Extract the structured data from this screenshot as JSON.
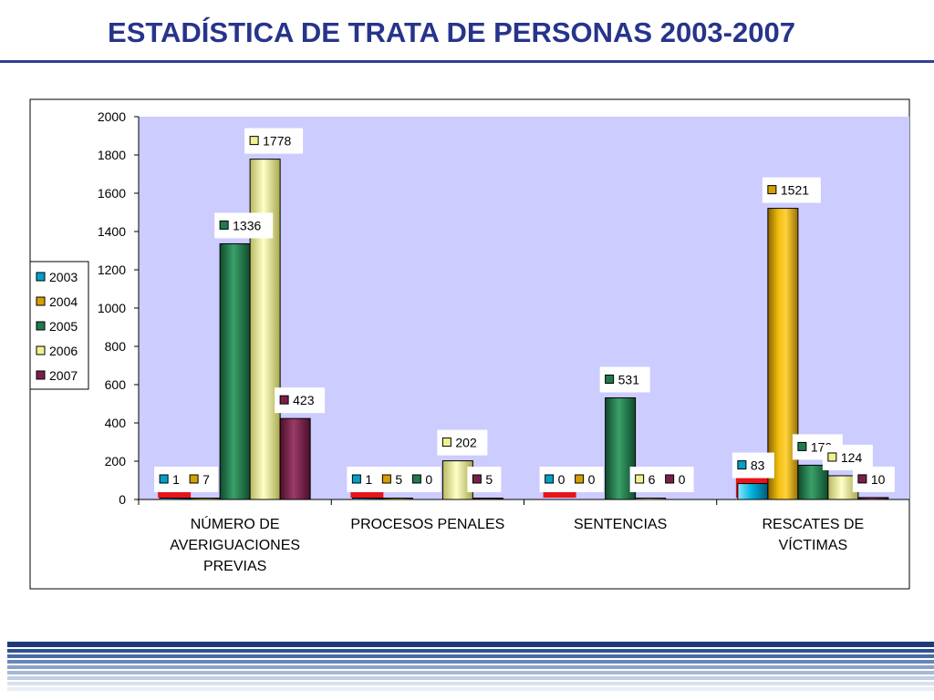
{
  "slide": {
    "title": "ESTADÍSTICA DE TRATA DE PERSONAS 2003-2007"
  },
  "colors": {
    "title": "#27348b",
    "plot_background": "#ccccff",
    "highlight_red": "#e8141c"
  },
  "chart_data": {
    "type": "bar",
    "title": "",
    "xlabel": "",
    "ylabel": "",
    "ylim": [
      0,
      2000
    ],
    "yticks": [
      0,
      200,
      400,
      600,
      800,
      1000,
      1200,
      1400,
      1600,
      1800,
      2000
    ],
    "grid": false,
    "legend_position": "left",
    "categories": [
      [
        "NÚMERO DE",
        "AVERIGUACIONES",
        "PREVIAS"
      ],
      [
        "PROCESOS PENALES"
      ],
      [
        "SENTENCIAS"
      ],
      [
        "RESCATES DE",
        "VÍCTIMAS"
      ]
    ],
    "series": [
      {
        "name": "2003",
        "color": "#00a0c8",
        "values": [
          1,
          1,
          0,
          83
        ],
        "labels": [
          "1",
          "1",
          "0",
          "83"
        ]
      },
      {
        "name": "2004",
        "color": "#d4a000",
        "values": [
          7,
          5,
          0,
          1521
        ],
        "labels": [
          "7",
          "5",
          "0",
          "1521"
        ]
      },
      {
        "name": "2005",
        "color": "#1f7a4c",
        "values": [
          1336,
          0,
          531,
          179
        ],
        "labels": [
          "1336",
          "0",
          "531",
          "179"
        ]
      },
      {
        "name": "2006",
        "color": "#f0f090",
        "values": [
          1778,
          202,
          6,
          124
        ],
        "labels": [
          "1778",
          "202",
          "6",
          "124"
        ]
      },
      {
        "name": "2007",
        "color": "#7a1f4a",
        "values": [
          423,
          5,
          0,
          10
        ],
        "labels": [
          "423",
          "5",
          "0",
          "10"
        ]
      }
    ]
  }
}
